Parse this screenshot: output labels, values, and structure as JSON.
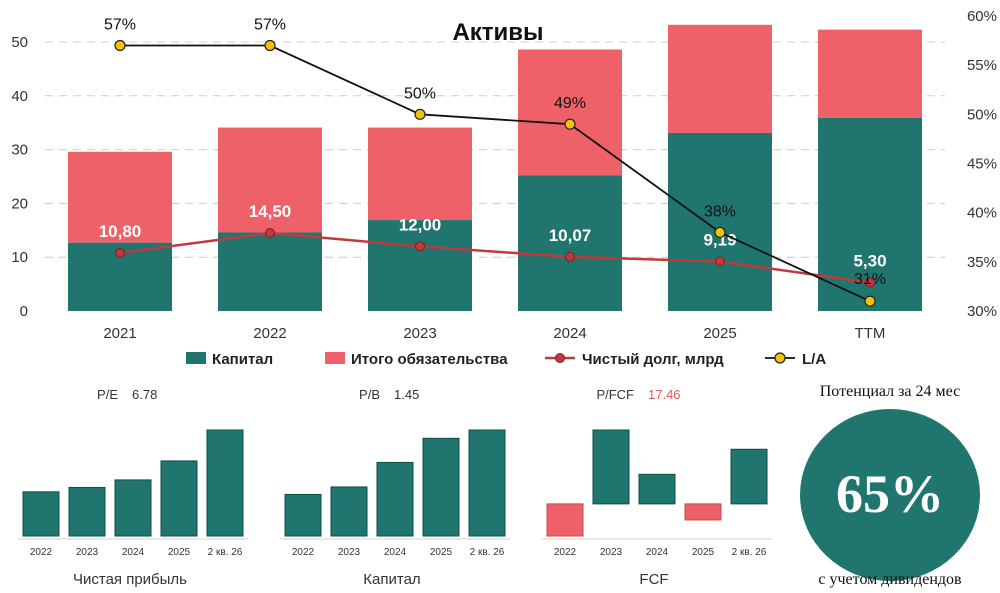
{
  "colors": {
    "capital": "#20766e",
    "liabilities": "#ef6168",
    "net_debt": "#c0393e",
    "la_line": "#111111",
    "la_marker": "#f4c20d",
    "pfcf_value": "#e05a5f",
    "grid": "#cccccc",
    "axis_text": "#333333"
  },
  "chart_data": [
    {
      "type": "bar",
      "title": "Активы",
      "stacked": true,
      "categories": [
        "2021",
        "2022",
        "2023",
        "2024",
        "2025",
        "TTM"
      ],
      "ylim": [
        0,
        55
      ],
      "yticks": [
        0,
        10,
        20,
        30,
        40,
        50
      ],
      "y2lim": [
        30,
        60
      ],
      "y2ticks": [
        "30%",
        "35%",
        "40%",
        "45%",
        "50%",
        "55%",
        "60%"
      ],
      "grid": true,
      "legend_position": "bottom",
      "series": [
        {
          "name": "Капитал",
          "kind": "bar",
          "values": [
            12.7,
            14.6,
            16.9,
            25.2,
            33.1,
            35.9
          ]
        },
        {
          "name": "Итого обязательства",
          "kind": "bar",
          "values": [
            16.9,
            19.5,
            17.2,
            23.4,
            20.1,
            16.4
          ]
        },
        {
          "name": "Чистый долг, млрд",
          "kind": "line",
          "axis": "left",
          "values": [
            10.8,
            14.5,
            12.0,
            10.07,
            9.19,
            5.3
          ],
          "labels": [
            "10,80",
            "14,50",
            "12,00",
            "10,07",
            "9,19",
            "5,30"
          ]
        },
        {
          "name": "L/A",
          "kind": "line",
          "axis": "right",
          "values": [
            57,
            57,
            50,
            49,
            38,
            31
          ],
          "labels": [
            "57%",
            "57%",
            "50%",
            "49%",
            "38%",
            "31%"
          ]
        }
      ]
    },
    {
      "type": "bar",
      "title": "Чистая прибыль",
      "metric_label": "P/E",
      "metric_value": "6.78",
      "categories": [
        "2022",
        "2023",
        "2024",
        "2025",
        "2 кв. 26"
      ],
      "values": [
        1.0,
        1.1,
        1.27,
        1.7,
        2.4
      ],
      "ylim": [
        0,
        2.4
      ]
    },
    {
      "type": "bar",
      "title": "Капитал",
      "metric_label": "P/B",
      "metric_value": "1.45",
      "categories": [
        "2022",
        "2023",
        "2024",
        "2025",
        "2 кв. 26"
      ],
      "values": [
        1.0,
        1.18,
        1.77,
        2.35,
        2.55
      ],
      "ylim": [
        0,
        2.55
      ]
    },
    {
      "type": "bar",
      "title": "FCF",
      "metric_label": "P/FCF",
      "metric_value": "17.46",
      "categories": [
        "2022",
        "2023",
        "2024",
        "2025",
        "2 кв. 26"
      ],
      "values": [
        -1.0,
        2.3,
        0.92,
        -0.5,
        1.7
      ],
      "ylim": [
        -1.0,
        2.3
      ]
    }
  ],
  "potential": {
    "top_text": "Потенциал за 24 мес",
    "value": "65%",
    "bottom_text": "с учетом дивидендов"
  }
}
